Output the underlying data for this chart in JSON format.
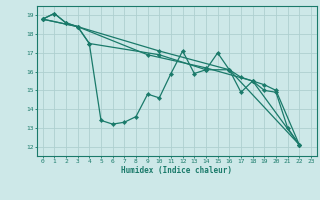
{
  "title": "",
  "xlabel": "Humidex (Indice chaleur)",
  "ylabel": "",
  "bg_color": "#cde8e8",
  "line_color": "#1a7a6a",
  "grid_color": "#aed0d0",
  "xlim": [
    -0.5,
    23.5
  ],
  "ylim": [
    11.5,
    19.5
  ],
  "xticks": [
    0,
    1,
    2,
    3,
    4,
    5,
    6,
    7,
    8,
    9,
    10,
    11,
    12,
    13,
    14,
    15,
    16,
    17,
    18,
    19,
    20,
    21,
    22,
    23
  ],
  "yticks": [
    12,
    13,
    14,
    15,
    16,
    17,
    18,
    19
  ],
  "series1": [
    [
      0,
      18.8
    ],
    [
      1,
      19.1
    ],
    [
      2,
      18.6
    ],
    [
      3,
      18.4
    ],
    [
      4,
      17.5
    ],
    [
      5,
      13.4
    ],
    [
      6,
      13.2
    ],
    [
      7,
      13.3
    ],
    [
      8,
      13.6
    ],
    [
      9,
      14.8
    ],
    [
      10,
      14.6
    ],
    [
      11,
      15.9
    ],
    [
      12,
      17.1
    ],
    [
      13,
      15.9
    ],
    [
      14,
      16.1
    ],
    [
      15,
      17.0
    ],
    [
      16,
      16.1
    ],
    [
      17,
      14.9
    ],
    [
      18,
      15.5
    ],
    [
      19,
      15.0
    ],
    [
      20,
      14.9
    ],
    [
      21,
      13.0
    ],
    [
      22,
      12.1
    ]
  ],
  "series2": [
    [
      0,
      18.8
    ],
    [
      1,
      19.1
    ],
    [
      2,
      18.6
    ],
    [
      3,
      18.4
    ],
    [
      4,
      17.5
    ],
    [
      10,
      16.9
    ],
    [
      14,
      16.1
    ],
    [
      16,
      16.1
    ],
    [
      17,
      15.7
    ],
    [
      18,
      15.5
    ],
    [
      19,
      15.3
    ],
    [
      20,
      15.0
    ],
    [
      22,
      12.1
    ]
  ],
  "series3": [
    [
      0,
      18.8
    ],
    [
      3,
      18.4
    ],
    [
      10,
      17.1
    ],
    [
      16,
      16.1
    ],
    [
      22,
      12.1
    ]
  ],
  "series4": [
    [
      0,
      18.8
    ],
    [
      3,
      18.4
    ],
    [
      9,
      16.9
    ],
    [
      14,
      16.2
    ],
    [
      18,
      15.5
    ],
    [
      22,
      12.1
    ]
  ]
}
